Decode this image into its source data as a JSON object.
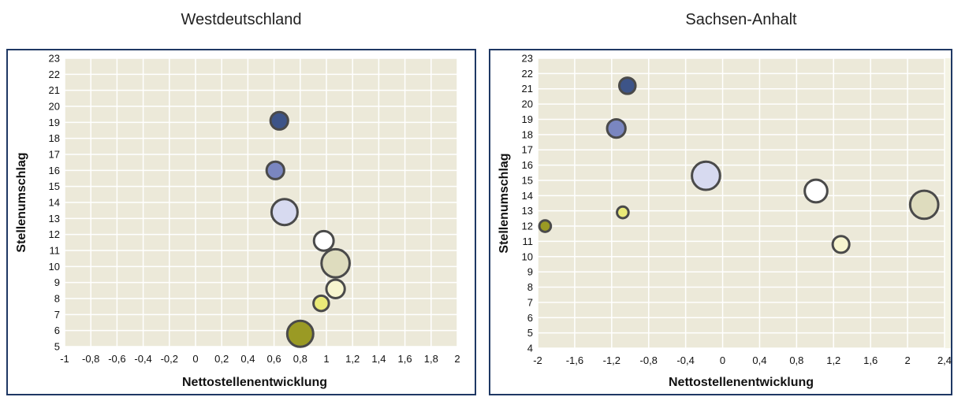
{
  "chart_data": [
    {
      "type": "bubble",
      "title": "Westdeutschland",
      "xlabel": "Nettostellenentwicklung",
      "ylabel": "Stellenumschlag",
      "xlim": [
        -1,
        2
      ],
      "ylim": [
        5,
        23
      ],
      "x_ticks": [
        -1,
        -0.8,
        -0.6,
        -0.4,
        -0.2,
        0,
        0.2,
        0.4,
        0.6,
        0.8,
        1,
        1.2,
        1.4,
        1.6,
        1.8,
        2
      ],
      "x_tick_labels": [
        "-1",
        "-0,8",
        "-0,6",
        "-0,4",
        "-0,2",
        "0",
        "0,2",
        "0,4",
        "0,6",
        "0,8",
        "1",
        "1,2",
        "1,4",
        "1,6",
        "1,8",
        "2"
      ],
      "y_ticks": [
        5,
        6,
        7,
        8,
        9,
        10,
        11,
        12,
        13,
        14,
        15,
        16,
        17,
        18,
        19,
        20,
        21,
        22,
        23
      ],
      "grid": true,
      "points": [
        {
          "x": 0.64,
          "y": 19.1,
          "size": 3,
          "color": "#3d5488"
        },
        {
          "x": 0.61,
          "y": 16.0,
          "size": 3,
          "color": "#7a86c0"
        },
        {
          "x": 0.68,
          "y": 13.4,
          "size": 5,
          "color": "#d7daf0"
        },
        {
          "x": 0.98,
          "y": 11.6,
          "size": 3.5,
          "color": "#ffffff"
        },
        {
          "x": 1.07,
          "y": 10.2,
          "size": 5.5,
          "color": "#dedcbe"
        },
        {
          "x": 1.07,
          "y": 8.6,
          "size": 3.2,
          "color": "#f7f5cf"
        },
        {
          "x": 0.96,
          "y": 7.7,
          "size": 2.5,
          "color": "#eaea78"
        },
        {
          "x": 0.8,
          "y": 5.8,
          "size": 5,
          "color": "#9a9a24"
        }
      ]
    },
    {
      "type": "bubble",
      "title": "Sachsen-Anhalt",
      "xlabel": "Nettostellenentwicklung",
      "ylabel": "Stellenumschlag",
      "xlim": [
        -2,
        2.4
      ],
      "ylim": [
        4,
        23
      ],
      "x_ticks": [
        -2,
        -1.6,
        -1.2,
        -0.8,
        -0.4,
        0,
        0.4,
        0.8,
        1.2,
        1.6,
        2,
        2.4
      ],
      "x_tick_labels": [
        "-2",
        "-1,6",
        "-1,2",
        "-0,8",
        "-0,4",
        "0",
        "0,4",
        "0,8",
        "1,2",
        "1,6",
        "2",
        "2,4"
      ],
      "y_ticks": [
        4,
        5,
        6,
        7,
        8,
        9,
        10,
        11,
        12,
        13,
        14,
        15,
        16,
        17,
        18,
        19,
        20,
        21,
        22,
        23
      ],
      "grid": true,
      "points": [
        {
          "x": -1.03,
          "y": 21.2,
          "size": 2.7,
          "color": "#3d5488"
        },
        {
          "x": -1.15,
          "y": 18.4,
          "size": 3.2,
          "color": "#7a86c0"
        },
        {
          "x": -0.18,
          "y": 15.3,
          "size": 5.5,
          "color": "#d7daf0"
        },
        {
          "x": 1.01,
          "y": 14.3,
          "size": 4.2,
          "color": "#ffffff"
        },
        {
          "x": 2.18,
          "y": 13.4,
          "size": 5.5,
          "color": "#dedcbe"
        },
        {
          "x": 1.28,
          "y": 10.8,
          "size": 2.8,
          "color": "#f7f5cf"
        },
        {
          "x": -1.08,
          "y": 12.9,
          "size": 1.6,
          "color": "#eaea78"
        },
        {
          "x": -1.92,
          "y": 12.0,
          "size": 1.6,
          "color": "#9a9a24"
        }
      ]
    }
  ]
}
